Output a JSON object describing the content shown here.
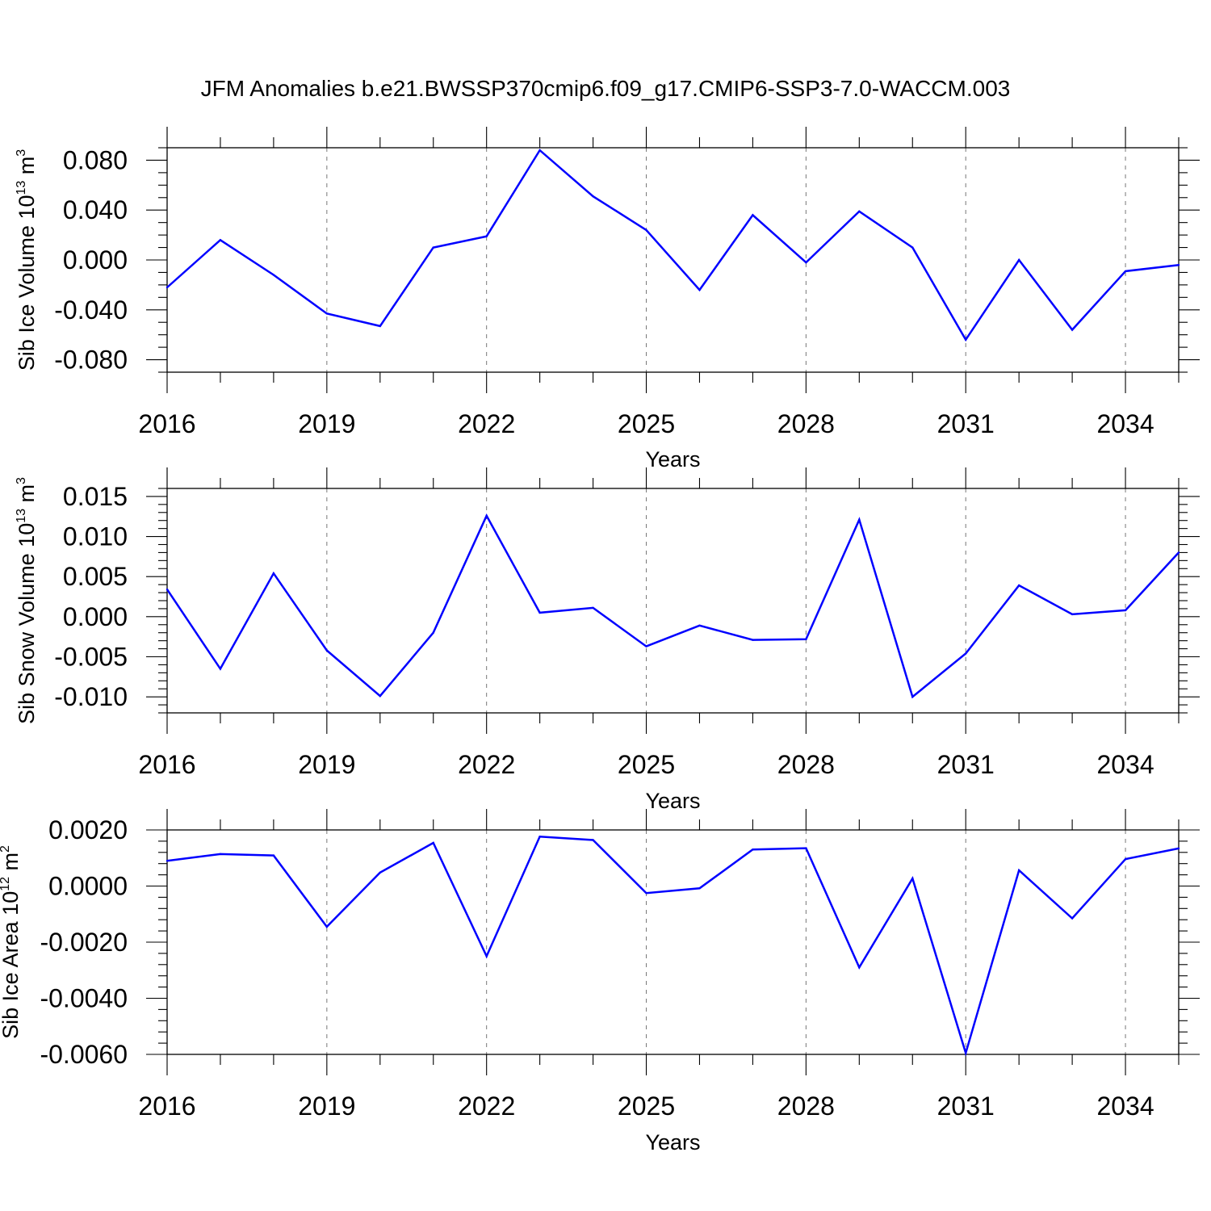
{
  "figure_title": "JFM Anomalies b.e21.BWSSP370cmip6.f09_g17.CMIP6-SSP3-7.0-WACCM.003",
  "colors": {
    "line": "#0000ff",
    "axis": "#000000",
    "grid": "#777777"
  },
  "chart_data": [
    {
      "type": "line",
      "xlabel": "Years",
      "ylabel": {
        "text": "Sib Ice Volume 10",
        "exp": "13",
        "unit": " m",
        "unit_exp": "3"
      },
      "x": [
        2016,
        2017,
        2018,
        2019,
        2020,
        2021,
        2022,
        2023,
        2024,
        2025,
        2026,
        2027,
        2028,
        2029,
        2030,
        2031,
        2032,
        2033,
        2034,
        2035
      ],
      "values": [
        -0.022,
        0.016,
        -0.012,
        -0.043,
        -0.053,
        0.01,
        0.019,
        0.088,
        0.051,
        0.024,
        -0.024,
        0.036,
        -0.002,
        0.039,
        0.01,
        -0.064,
        0.0,
        -0.056,
        -0.009,
        -0.004
      ],
      "xlim": [
        2016,
        2035
      ],
      "ylim": [
        -0.09,
        0.09
      ],
      "x_ticks": [
        2016,
        2019,
        2022,
        2025,
        2028,
        2031,
        2034
      ],
      "x_tick_labels": [
        "2016",
        "2019",
        "2022",
        "2025",
        "2028",
        "2031",
        "2034"
      ],
      "y_ticks": [
        -0.08,
        -0.04,
        0.0,
        0.04,
        0.08
      ],
      "y_tick_labels": [
        "-0.080",
        "-0.040",
        "0.000",
        "0.040",
        "0.080"
      ],
      "y_minor_step": 0.01,
      "grid": "vertical dashed at major x ticks"
    },
    {
      "type": "line",
      "xlabel": "Years",
      "ylabel": {
        "text": "Sib Snow Volume 10",
        "exp": "13",
        "unit": " m",
        "unit_exp": "3"
      },
      "x": [
        2016,
        2017,
        2018,
        2019,
        2020,
        2021,
        2022,
        2023,
        2024,
        2025,
        2026,
        2027,
        2028,
        2029,
        2030,
        2031,
        2032,
        2033,
        2034,
        2035
      ],
      "values": [
        0.0034,
        -0.0065,
        0.0054,
        -0.0042,
        -0.0099,
        -0.002,
        0.0126,
        0.0005,
        0.0011,
        -0.0037,
        -0.0011,
        -0.0029,
        -0.0028,
        0.0121,
        -0.01,
        -0.0046,
        0.0039,
        0.0003,
        0.0008,
        0.008
      ],
      "xlim": [
        2016,
        2035
      ],
      "ylim": [
        -0.012,
        0.016
      ],
      "x_ticks": [
        2016,
        2019,
        2022,
        2025,
        2028,
        2031,
        2034
      ],
      "x_tick_labels": [
        "2016",
        "2019",
        "2022",
        "2025",
        "2028",
        "2031",
        "2034"
      ],
      "y_ticks": [
        -0.01,
        -0.005,
        0.0,
        0.005,
        0.01,
        0.015
      ],
      "y_tick_labels": [
        "-0.010",
        "-0.005",
        "0.000",
        "0.005",
        "0.010",
        "0.015"
      ],
      "y_minor_step": 0.001,
      "grid": "vertical dashed at major x ticks"
    },
    {
      "type": "line",
      "xlabel": "Years",
      "ylabel": {
        "text": "Sib Ice Area 10",
        "exp": "12",
        "unit": " m",
        "unit_exp": "2"
      },
      "x": [
        2016,
        2017,
        2018,
        2019,
        2020,
        2021,
        2022,
        2023,
        2024,
        2025,
        2026,
        2027,
        2028,
        2029,
        2030,
        2031,
        2032,
        2033,
        2034,
        2035
      ],
      "values": [
        0.0009,
        0.00114,
        0.00109,
        -0.00145,
        0.00048,
        0.00154,
        -0.0025,
        0.00176,
        0.00164,
        -0.00025,
        -8e-05,
        0.0013,
        0.00135,
        -0.0029,
        0.00027,
        -0.00595,
        0.00056,
        -0.00115,
        0.00096,
        0.00134
      ],
      "xlim": [
        2016,
        2035
      ],
      "ylim": [
        -0.006,
        0.002
      ],
      "x_ticks": [
        2016,
        2019,
        2022,
        2025,
        2028,
        2031,
        2034
      ],
      "x_tick_labels": [
        "2016",
        "2019",
        "2022",
        "2025",
        "2028",
        "2031",
        "2034"
      ],
      "y_ticks": [
        -0.006,
        -0.004,
        -0.002,
        0.0,
        0.002
      ],
      "y_tick_labels": [
        "-0.0060",
        "-0.0040",
        "-0.0020",
        "0.0000",
        "0.0020"
      ],
      "y_minor_step": 0.0004,
      "grid": "vertical dashed at major x ticks"
    }
  ]
}
